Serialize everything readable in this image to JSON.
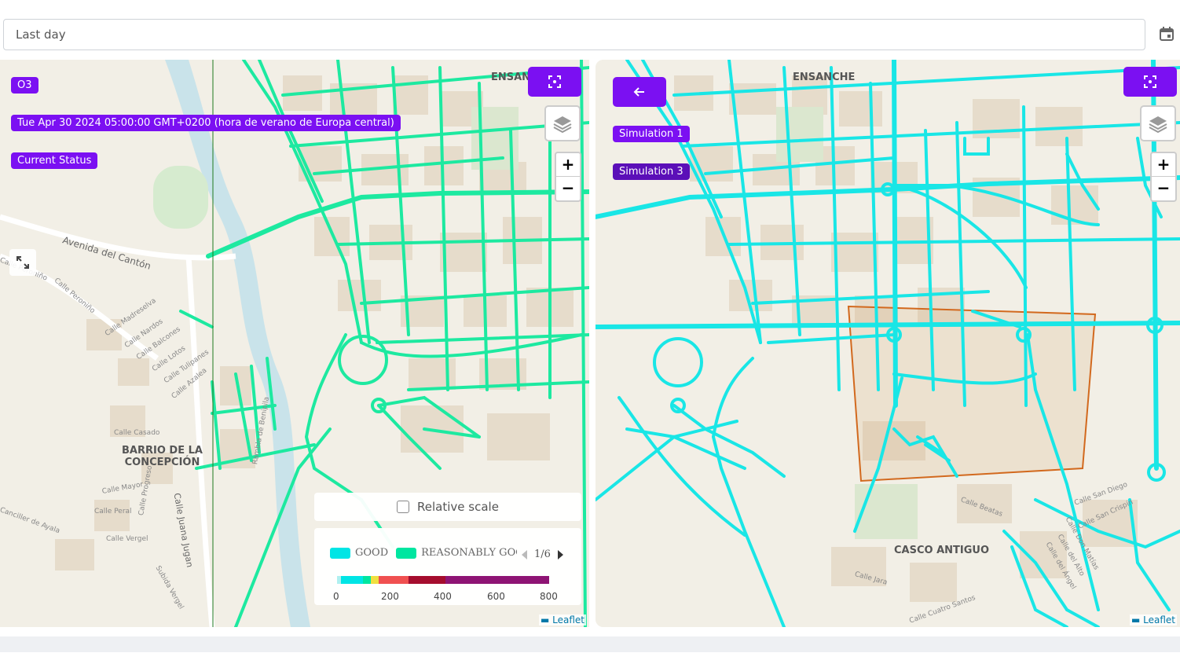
{
  "date_range": {
    "value": "Last day"
  },
  "left_map": {
    "pollutant": "O3",
    "timestamp": "Tue Apr 30 2024 05:00:00 GMT+0200 (hora de verano de Europa central)",
    "status": "Current Status",
    "districts": [
      {
        "name": "BARRIO DE LA\nCONCEPCIÓN"
      },
      {
        "name": "ENSAN"
      }
    ],
    "streets": [
      "Avenida del Cantón",
      "Calle Peroniño",
      "Calle Peroniño",
      "Calle Madreselva",
      "Calle Nardos",
      "Calle Balcones",
      "Calle Lotos",
      "Calle Tulipanes",
      "Calle Azalea",
      "Calle Casado",
      "Calle Mayor",
      "Calle Peral",
      "Calle Progreso",
      "Calle Vergel",
      "Calle Juana Jugan",
      "Subida Vergel",
      "Canciller de Ayala",
      "Rambla de Benipila"
    ],
    "relative_scale_label": "Relative scale",
    "legend": {
      "items": [
        {
          "label": "GOOD",
          "color": "#00e5e5"
        },
        {
          "label": "REASONABLY GOOD",
          "color": "#00e6a0"
        }
      ],
      "page": "1/6",
      "ticks": [
        "0",
        "200",
        "400",
        "600",
        "800"
      ]
    },
    "attribution": "Leaflet"
  },
  "right_map": {
    "simulations": [
      "Simulation 1",
      "Simulation 3"
    ],
    "districts": [
      {
        "name": "ENSANCHE"
      },
      {
        "name": "CASCO ANTIGUO"
      }
    ],
    "streets": [
      "Calle Beatas",
      "Calle San Diego",
      "Calle San Crispín",
      "Calle Don Matías",
      "Calle del Ángel",
      "Calle del Alto",
      "Calle Jara",
      "Calle Cuatro Santos"
    ],
    "attribution": "Leaflet"
  },
  "colors": {
    "accent": "#7b10f2",
    "good": "#00e5e5",
    "reasonably_good": "#00e6a0",
    "zone_outline": "#d2691e"
  }
}
